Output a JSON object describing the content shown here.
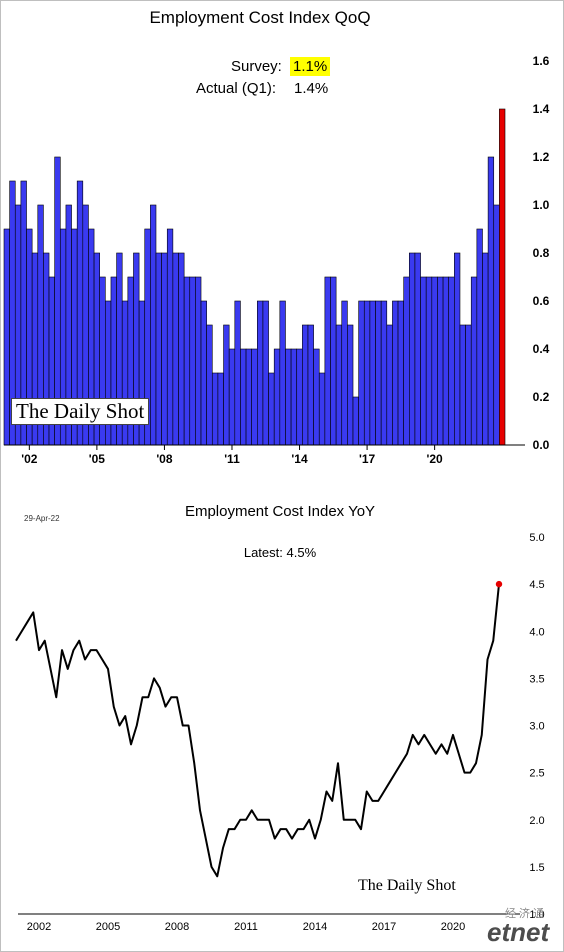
{
  "chart_data": [
    {
      "type": "bar",
      "title": "Employment Cost Index QoQ",
      "annotation": {
        "survey_label": "Survey:",
        "survey_value": "1.1%",
        "actual_label": "Actual (Q1):",
        "actual_value": "1.4%"
      },
      "start_quarter": "2001 Q1",
      "values": [
        0.9,
        1.1,
        1.0,
        1.1,
        0.9,
        0.8,
        1.0,
        0.8,
        0.7,
        1.2,
        0.9,
        1.0,
        0.9,
        1.1,
        1.0,
        0.9,
        0.8,
        0.7,
        0.6,
        0.7,
        0.8,
        0.6,
        0.7,
        0.8,
        0.6,
        0.9,
        1.0,
        0.8,
        0.8,
        0.9,
        0.8,
        0.8,
        0.7,
        0.7,
        0.7,
        0.6,
        0.5,
        0.3,
        0.3,
        0.5,
        0.4,
        0.6,
        0.4,
        0.4,
        0.4,
        0.6,
        0.6,
        0.3,
        0.4,
        0.6,
        0.4,
        0.4,
        0.4,
        0.5,
        0.5,
        0.4,
        0.3,
        0.7,
        0.7,
        0.5,
        0.6,
        0.5,
        0.2,
        0.6,
        0.6,
        0.6,
        0.6,
        0.6,
        0.5,
        0.6,
        0.6,
        0.7,
        0.8,
        0.8,
        0.7,
        0.7,
        0.7,
        0.7,
        0.7,
        0.7,
        0.8,
        0.5,
        0.5,
        0.7,
        0.9,
        0.8,
        1.2,
        1.0,
        1.4
      ],
      "highlight_last": true,
      "colors": {
        "bar": "#3a3af0",
        "highlight": "#e60000"
      },
      "x_tick_labels": [
        "'02",
        "'05",
        "'08",
        "'11",
        "'14",
        "'17",
        "'20"
      ],
      "y_tick_labels": [
        "0.0",
        "0.2",
        "0.4",
        "0.6",
        "0.8",
        "1.0",
        "1.2",
        "1.4",
        "1.6"
      ],
      "ylim": [
        0,
        1.6
      ],
      "y_axis_side": "right",
      "grid": false,
      "watermark": "The Daily Shot"
    },
    {
      "type": "line",
      "title": "Employment Cost Index YoY",
      "date_label": "29-Apr-22",
      "latest_label": "Latest:",
      "latest_value": "4.5%",
      "x": [
        2001.0,
        2001.25,
        2001.5,
        2001.75,
        2002.0,
        2002.25,
        2002.5,
        2002.75,
        2003.0,
        2003.25,
        2003.5,
        2003.75,
        2004.0,
        2004.25,
        2004.5,
        2004.75,
        2005.0,
        2005.25,
        2005.5,
        2005.75,
        2006.0,
        2006.25,
        2006.5,
        2006.75,
        2007.0,
        2007.25,
        2007.5,
        2007.75,
        2008.0,
        2008.25,
        2008.5,
        2008.75,
        2009.0,
        2009.25,
        2009.5,
        2009.75,
        2010.0,
        2010.25,
        2010.5,
        2010.75,
        2011.0,
        2011.25,
        2011.5,
        2011.75,
        2012.0,
        2012.25,
        2012.5,
        2012.75,
        2013.0,
        2013.25,
        2013.5,
        2013.75,
        2014.0,
        2014.25,
        2014.5,
        2014.75,
        2015.0,
        2015.25,
        2015.5,
        2015.75,
        2016.0,
        2016.25,
        2016.5,
        2016.75,
        2017.0,
        2017.25,
        2017.5,
        2017.75,
        2018.0,
        2018.25,
        2018.5,
        2018.75,
        2019.0,
        2019.25,
        2019.5,
        2019.75,
        2020.0,
        2020.25,
        2020.5,
        2020.75,
        2021.0,
        2021.25,
        2021.5,
        2021.75,
        2022.0
      ],
      "y": [
        3.9,
        4.0,
        4.1,
        4.2,
        3.8,
        3.9,
        3.6,
        3.3,
        3.8,
        3.6,
        3.8,
        3.9,
        3.7,
        3.8,
        3.8,
        3.7,
        3.6,
        3.2,
        3.0,
        3.1,
        2.8,
        3.0,
        3.3,
        3.3,
        3.5,
        3.4,
        3.2,
        3.3,
        3.3,
        3.0,
        3.0,
        2.6,
        2.1,
        1.8,
        1.5,
        1.4,
        1.7,
        1.9,
        1.9,
        2.0,
        2.0,
        2.1,
        2.0,
        2.0,
        2.0,
        1.8,
        1.9,
        1.9,
        1.8,
        1.9,
        1.9,
        2.0,
        1.8,
        2.0,
        2.3,
        2.2,
        2.6,
        2.0,
        2.0,
        2.0,
        1.9,
        2.3,
        2.2,
        2.2,
        2.3,
        2.4,
        2.5,
        2.6,
        2.7,
        2.9,
        2.8,
        2.9,
        2.8,
        2.7,
        2.8,
        2.7,
        2.9,
        2.7,
        2.5,
        2.5,
        2.6,
        2.9,
        3.7,
        3.9,
        4.5
      ],
      "x_tick_labels": [
        "2002",
        "2005",
        "2008",
        "2011",
        "2014",
        "2017",
        "2020"
      ],
      "y_tick_labels": [
        "1.0",
        "1.5",
        "2.0",
        "2.5",
        "3.0",
        "3.5",
        "4.0",
        "4.5",
        "5.0"
      ],
      "ylim": [
        1.0,
        5.0
      ],
      "y_axis_side": "right",
      "colors": {
        "line": "#000000",
        "last_point": "#e60000"
      },
      "grid": false,
      "watermark": "The Daily Shot"
    }
  ],
  "branding": {
    "etnet_cn": "经济通",
    "etnet": "etnet"
  }
}
